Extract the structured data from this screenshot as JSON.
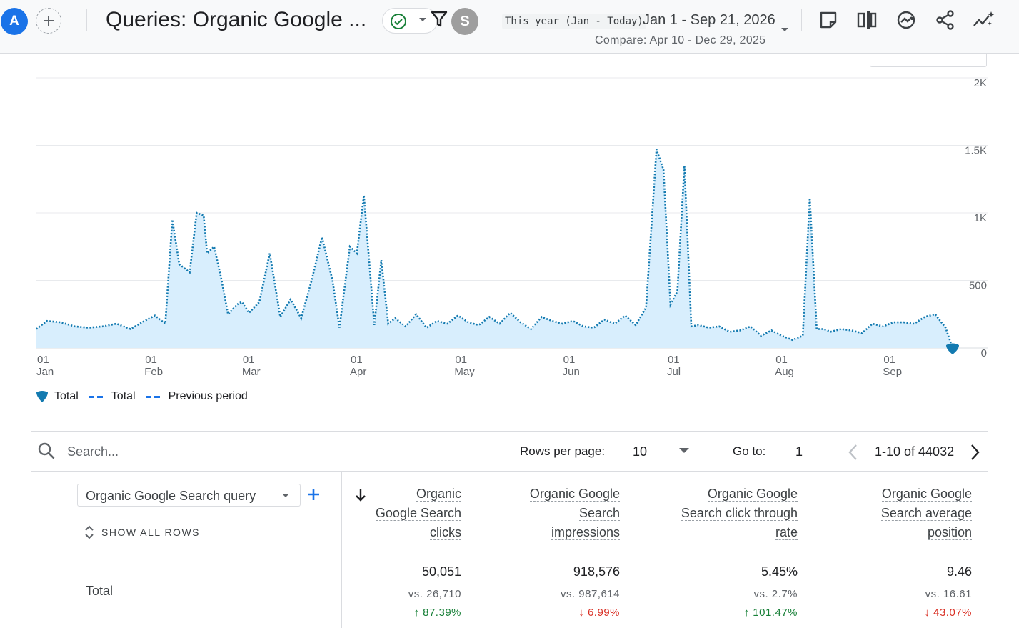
{
  "header": {
    "avatar_letter": "A",
    "title": "Queries: Organic Google ...",
    "user_letter": "S",
    "date_preset": "This year (Jan - Today)",
    "date_range": "Jan 1 - Sep 21, 2026",
    "compare": "Compare: Apr 10 - Dec 29, 2025",
    "tool_icons": [
      "note-icon",
      "compare-columns-icon",
      "insights-icon",
      "share-icon",
      "trend-sparkle-icon"
    ]
  },
  "colors": {
    "accent": "#1a73e8",
    "series_line": "#137ab0",
    "area_fill": "#d8eefd",
    "up": "#188038",
    "down": "#d93025"
  },
  "chart_data": {
    "type": "area",
    "y_ticks": [
      "2K",
      "1.5K",
      "1K",
      "500",
      "0"
    ],
    "ylim": [
      0,
      2000
    ],
    "x_ticks": [
      {
        "day": "01",
        "month": "Jan",
        "date": "2026-01-01"
      },
      {
        "day": "01",
        "month": "Feb",
        "date": "2026-02-01"
      },
      {
        "day": "01",
        "month": "Mar",
        "date": "2026-03-01"
      },
      {
        "day": "01",
        "month": "Apr",
        "date": "2026-04-01"
      },
      {
        "day": "01",
        "month": "May",
        "date": "2026-05-01"
      },
      {
        "day": "01",
        "month": "Jun",
        "date": "2026-06-01"
      },
      {
        "day": "01",
        "month": "Jul",
        "date": "2026-07-01"
      },
      {
        "day": "01",
        "month": "Aug",
        "date": "2026-08-01"
      },
      {
        "day": "01",
        "month": "Sep",
        "date": "2026-09-01"
      }
    ],
    "x": [
      "2026-01-01",
      "2026-01-04",
      "2026-01-08",
      "2026-01-12",
      "2026-01-16",
      "2026-01-20",
      "2026-01-24",
      "2026-01-28",
      "2026-02-01",
      "2026-02-04",
      "2026-02-07",
      "2026-02-09",
      "2026-02-11",
      "2026-02-14",
      "2026-02-16",
      "2026-02-18",
      "2026-02-19",
      "2026-02-21",
      "2026-02-23",
      "2026-02-25",
      "2026-02-28",
      "2026-03-01",
      "2026-03-03",
      "2026-03-06",
      "2026-03-09",
      "2026-03-12",
      "2026-03-15",
      "2026-03-18",
      "2026-03-21",
      "2026-03-24",
      "2026-03-27",
      "2026-03-29",
      "2026-04-01",
      "2026-04-03",
      "2026-04-05",
      "2026-04-08",
      "2026-04-10",
      "2026-04-12",
      "2026-04-14",
      "2026-04-17",
      "2026-04-20",
      "2026-04-23",
      "2026-04-26",
      "2026-04-29",
      "2026-05-02",
      "2026-05-05",
      "2026-05-08",
      "2026-05-11",
      "2026-05-14",
      "2026-05-17",
      "2026-05-20",
      "2026-05-23",
      "2026-05-26",
      "2026-05-29",
      "2026-06-01",
      "2026-06-04",
      "2026-06-07",
      "2026-06-10",
      "2026-06-13",
      "2026-06-16",
      "2026-06-19",
      "2026-06-22",
      "2026-06-25",
      "2026-06-28",
      "2026-06-30",
      "2026-07-02",
      "2026-07-04",
      "2026-07-06",
      "2026-07-08",
      "2026-07-10",
      "2026-07-13",
      "2026-07-16",
      "2026-07-19",
      "2026-07-22",
      "2026-07-25",
      "2026-07-28",
      "2026-07-31",
      "2026-08-03",
      "2026-08-06",
      "2026-08-09",
      "2026-08-11",
      "2026-08-13",
      "2026-08-15",
      "2026-08-17",
      "2026-08-20",
      "2026-08-23",
      "2026-08-26",
      "2026-08-29",
      "2026-09-01",
      "2026-09-04",
      "2026-09-07",
      "2026-09-10",
      "2026-09-13",
      "2026-09-16",
      "2026-09-19",
      "2026-09-21"
    ],
    "series": [
      {
        "name": "Total",
        "values": [
          140,
          200,
          190,
          160,
          150,
          160,
          180,
          140,
          200,
          240,
          180,
          950,
          620,
          560,
          1000,
          980,
          700,
          750,
          520,
          250,
          330,
          340,
          260,
          340,
          700,
          230,
          360,
          220,
          500,
          820,
          500,
          150,
          750,
          700,
          1130,
          170,
          650,
          180,
          220,
          160,
          250,
          150,
          200,
          180,
          240,
          190,
          170,
          230,
          180,
          260,
          190,
          140,
          230,
          200,
          180,
          200,
          160,
          150,
          210,
          180,
          240,
          170,
          300,
          1470,
          1320,
          320,
          420,
          1350,
          160,
          170,
          150,
          160,
          120,
          130,
          160,
          90,
          130,
          90,
          60,
          90,
          1110,
          140,
          140,
          120,
          140,
          130,
          110,
          180,
          160,
          190,
          190,
          180,
          230,
          250,
          150,
          0
        ]
      }
    ]
  },
  "legend": {
    "items": [
      {
        "label": "Total",
        "kind": "drop"
      },
      {
        "label": "Total",
        "kind": "dash"
      },
      {
        "label": "Previous period",
        "kind": "dash"
      }
    ]
  },
  "table_controls": {
    "search_placeholder": "Search...",
    "rows_per_page_label": "Rows per page:",
    "rows_per_page_value": "10",
    "goto_label": "Go to:",
    "goto_value": "1",
    "pager_text": "1-10 of 44032"
  },
  "dimension": {
    "select_value": "Organic Google Search query",
    "show_all_rows": "SHOW ALL ROWS",
    "total_label": "Total"
  },
  "metrics": [
    {
      "head": [
        "Organic",
        "Google Search",
        "clicks"
      ],
      "value": "50,051",
      "compare": "vs. 26,710",
      "change": "↑ 87.39%",
      "direction": "up"
    },
    {
      "head": [
        "Organic Google",
        "Search",
        "impressions"
      ],
      "value": "918,576",
      "compare": "vs. 987,614",
      "change": "↓ 6.99%",
      "direction": "down"
    },
    {
      "head": [
        "Organic Google",
        "Search click through",
        "rate"
      ],
      "value": "5.45%",
      "compare": "vs. 2.7%",
      "change": "↑ 101.47%",
      "direction": "up"
    },
    {
      "head": [
        "Organic Google",
        "Search average",
        "position"
      ],
      "value": "9.46",
      "compare": "vs. 16.61",
      "change": "↓ 43.07%",
      "direction": "down"
    }
  ]
}
